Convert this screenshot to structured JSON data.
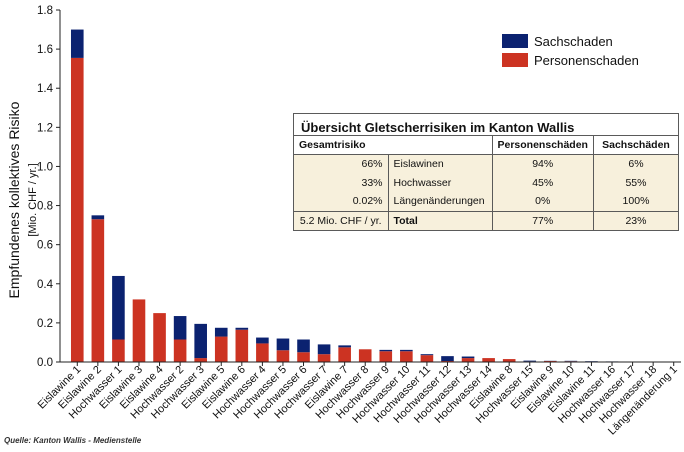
{
  "chart_data": {
    "type": "bar",
    "stacked": true,
    "ylabel": "Empfundenes kollektives Risiko",
    "ylabel_unit": "[Mio. CHF / yr.]",
    "ylim": [
      0,
      1.8
    ],
    "yticks": [
      "0.0",
      "0.2",
      "0.4",
      "0.6",
      "0.8",
      "1.0",
      "1.2",
      "1.4",
      "1.6",
      "1.8"
    ],
    "grid": false,
    "legend_position": "top-right",
    "categories": [
      "Eislawine 1",
      "Eislawine 2",
      "Hochwasser 1",
      "Eislawine 3",
      "Eislawine 4",
      "Hochwasser 2",
      "Hochwasser 3",
      "Eislawine 5",
      "Eislawine 6",
      "Hochwasser 4",
      "Hochwasser 5",
      "Hochwasser 6",
      "Hochwasser 7",
      "Eislawine 7",
      "Hochwasser 8",
      "Hochwasser 9",
      "Hochwasser 10",
      "Hochwasser 11",
      "Hochwasser 12",
      "Hochwasser 13",
      "Hochwasser 14",
      "Eislawine 8",
      "Hochwasser 15",
      "Eislawine 9",
      "Eislawine 10",
      "Eislawine 11",
      "Hochwasser 16",
      "Hochwasser 17",
      "Hochwasser 18",
      "Längenänderung 1"
    ],
    "series": [
      {
        "name": "Personenschaden",
        "color": "#cc3322",
        "values": [
          1.555,
          0.73,
          0.115,
          0.32,
          0.25,
          0.115,
          0.02,
          0.13,
          0.165,
          0.095,
          0.06,
          0.05,
          0.04,
          0.075,
          0.065,
          0.055,
          0.055,
          0.035,
          0.005,
          0.02,
          0.02,
          0.015,
          0.003,
          0.005,
          0.004,
          0.002,
          0.002,
          0.001,
          0.001,
          0.0
        ]
      },
      {
        "name": "Sachschaden",
        "color": "#0b2270",
        "values": [
          0.145,
          0.02,
          0.325,
          0.0,
          0.0,
          0.12,
          0.175,
          0.045,
          0.01,
          0.03,
          0.06,
          0.065,
          0.05,
          0.01,
          0.0,
          0.007,
          0.007,
          0.005,
          0.025,
          0.008,
          0.0,
          0.0,
          0.004,
          0.001,
          0.002,
          0.002,
          0.001,
          0.001,
          0.0,
          0.0
        ]
      }
    ]
  },
  "legend": {
    "items": [
      {
        "label": "Sachschaden",
        "color": "#0b2270"
      },
      {
        "label": "Personenschaden",
        "color": "#cc3322"
      }
    ]
  },
  "overview": {
    "title": "Übersicht Gletscherrisiken im Kanton Wallis",
    "headers": [
      "Gesamtrisiko",
      "",
      "Personenschäden",
      "Sachschäden"
    ],
    "rows": [
      {
        "share": "66%",
        "category": "Eislawinen",
        "personen": "94%",
        "sach": "6%"
      },
      {
        "share": "33%",
        "category": "Hochwasser",
        "personen": "45%",
        "sach": "55%"
      },
      {
        "share": "0.02%",
        "category": "Längenänderungen",
        "personen": "0%",
        "sach": "100%"
      }
    ],
    "total": {
      "share": "5.2 Mio. CHF / yr.",
      "category": "Total",
      "personen": "77%",
      "sach": "23%"
    }
  },
  "source": "Quelle: Kanton Wallis - Medienstelle"
}
